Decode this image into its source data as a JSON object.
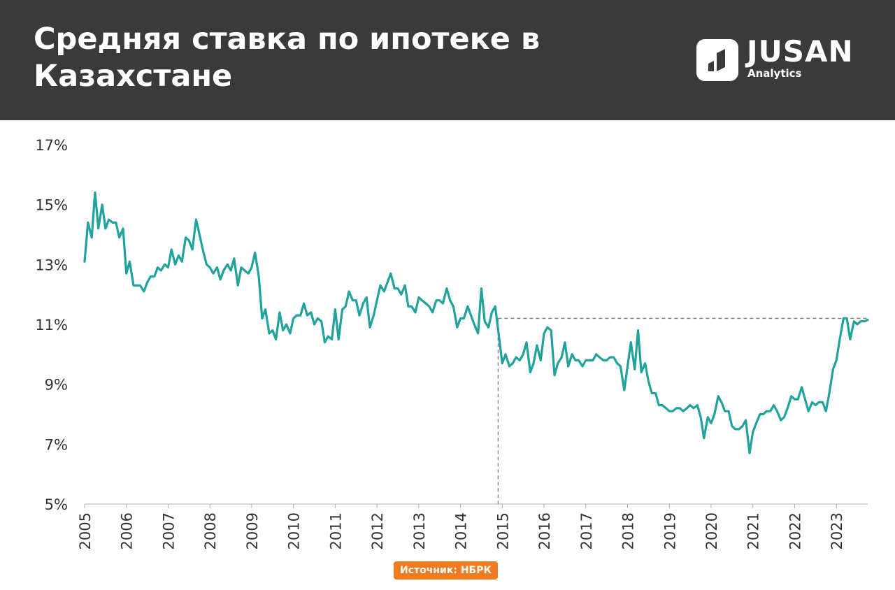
{
  "header": {
    "title": "Средняя ставка по ипотеке в Казахстане",
    "logo_name": "JUSAN",
    "logo_sub": "Analytics",
    "logo_icon": "jusan-logo-icon"
  },
  "source_label": "Источник: НБРК",
  "colors": {
    "header_bg": "#3a3a3a",
    "line": "#1fa39b",
    "source_badge": "#f07a1d",
    "reference": "#7a7a7a"
  },
  "chart_data": {
    "type": "line",
    "x_axis": "year",
    "xlim": [
      2005,
      2023.75
    ],
    "ylim": [
      5,
      17
    ],
    "yticks": [
      5,
      7,
      9,
      11,
      13,
      15,
      17
    ],
    "ytick_labels": [
      "5%",
      "7%",
      "9%",
      "11%",
      "13%",
      "15%",
      "17%"
    ],
    "xtick_labels": [
      "2005",
      "2006",
      "2007",
      "2008",
      "2009",
      "2010",
      "2011",
      "2012",
      "2013",
      "2014",
      "2015",
      "2016",
      "2017",
      "2018",
      "2019",
      "2020",
      "2021",
      "2022",
      "2023"
    ],
    "grid": false,
    "reference_lines": {
      "x": 2014.9,
      "y": 11.2
    },
    "series": [
      {
        "values": [
          [
            2005.0,
            13.1
          ],
          [
            2005.08,
            14.4
          ],
          [
            2005.17,
            13.9
          ],
          [
            2005.25,
            15.4
          ],
          [
            2005.33,
            14.2
          ],
          [
            2005.42,
            15.0
          ],
          [
            2005.5,
            14.2
          ],
          [
            2005.58,
            14.5
          ],
          [
            2005.67,
            14.4
          ],
          [
            2005.75,
            14.4
          ],
          [
            2005.83,
            13.9
          ],
          [
            2005.92,
            14.2
          ],
          [
            2006.0,
            12.7
          ],
          [
            2006.08,
            13.1
          ],
          [
            2006.17,
            12.3
          ],
          [
            2006.25,
            12.3
          ],
          [
            2006.33,
            12.3
          ],
          [
            2006.42,
            12.1
          ],
          [
            2006.5,
            12.4
          ],
          [
            2006.58,
            12.6
          ],
          [
            2006.67,
            12.6
          ],
          [
            2006.75,
            12.9
          ],
          [
            2006.83,
            12.8
          ],
          [
            2006.92,
            13.0
          ],
          [
            2007.0,
            12.9
          ],
          [
            2007.08,
            13.5
          ],
          [
            2007.17,
            13.0
          ],
          [
            2007.25,
            13.3
          ],
          [
            2007.33,
            13.1
          ],
          [
            2007.42,
            13.9
          ],
          [
            2007.5,
            13.8
          ],
          [
            2007.58,
            13.5
          ],
          [
            2007.67,
            14.5
          ],
          [
            2007.75,
            14.0
          ],
          [
            2007.83,
            13.5
          ],
          [
            2007.92,
            13.0
          ],
          [
            2008.0,
            12.9
          ],
          [
            2008.08,
            12.7
          ],
          [
            2008.17,
            12.9
          ],
          [
            2008.25,
            12.5
          ],
          [
            2008.33,
            12.8
          ],
          [
            2008.42,
            13.0
          ],
          [
            2008.5,
            12.8
          ],
          [
            2008.58,
            13.2
          ],
          [
            2008.67,
            12.3
          ],
          [
            2008.75,
            12.9
          ],
          [
            2008.83,
            12.8
          ],
          [
            2008.92,
            12.7
          ],
          [
            2009.0,
            12.9
          ],
          [
            2009.08,
            13.4
          ],
          [
            2009.17,
            12.6
          ],
          [
            2009.25,
            11.2
          ],
          [
            2009.33,
            11.5
          ],
          [
            2009.42,
            10.7
          ],
          [
            2009.5,
            10.8
          ],
          [
            2009.58,
            10.5
          ],
          [
            2009.67,
            11.4
          ],
          [
            2009.75,
            10.8
          ],
          [
            2009.83,
            11.0
          ],
          [
            2009.92,
            10.7
          ],
          [
            2010.0,
            11.2
          ],
          [
            2010.08,
            11.3
          ],
          [
            2010.17,
            11.3
          ],
          [
            2010.25,
            11.7
          ],
          [
            2010.33,
            11.3
          ],
          [
            2010.42,
            11.4
          ],
          [
            2010.5,
            11.0
          ],
          [
            2010.58,
            11.2
          ],
          [
            2010.67,
            11.1
          ],
          [
            2010.75,
            10.4
          ],
          [
            2010.83,
            10.6
          ],
          [
            2010.92,
            10.5
          ],
          [
            2011.0,
            11.5
          ],
          [
            2011.08,
            10.5
          ],
          [
            2011.17,
            11.5
          ],
          [
            2011.25,
            11.6
          ],
          [
            2011.33,
            12.1
          ],
          [
            2011.42,
            11.8
          ],
          [
            2011.5,
            11.8
          ],
          [
            2011.58,
            11.3
          ],
          [
            2011.67,
            11.7
          ],
          [
            2011.75,
            11.9
          ],
          [
            2011.83,
            10.9
          ],
          [
            2011.92,
            11.3
          ],
          [
            2012.0,
            11.8
          ],
          [
            2012.08,
            12.3
          ],
          [
            2012.17,
            12.1
          ],
          [
            2012.25,
            12.4
          ],
          [
            2012.33,
            12.7
          ],
          [
            2012.42,
            12.2
          ],
          [
            2012.5,
            12.2
          ],
          [
            2012.58,
            12.0
          ],
          [
            2012.67,
            12.3
          ],
          [
            2012.75,
            11.6
          ],
          [
            2012.83,
            11.6
          ],
          [
            2012.92,
            11.4
          ],
          [
            2013.0,
            11.9
          ],
          [
            2013.08,
            11.8
          ],
          [
            2013.17,
            11.7
          ],
          [
            2013.25,
            11.6
          ],
          [
            2013.33,
            11.4
          ],
          [
            2013.42,
            11.8
          ],
          [
            2013.5,
            11.8
          ],
          [
            2013.58,
            11.7
          ],
          [
            2013.67,
            12.2
          ],
          [
            2013.75,
            11.8
          ],
          [
            2013.83,
            11.6
          ],
          [
            2013.92,
            10.9
          ],
          [
            2014.0,
            11.2
          ],
          [
            2014.08,
            11.2
          ],
          [
            2014.17,
            11.6
          ],
          [
            2014.25,
            11.3
          ],
          [
            2014.33,
            11.0
          ],
          [
            2014.42,
            10.7
          ],
          [
            2014.5,
            12.2
          ],
          [
            2014.58,
            11.1
          ],
          [
            2014.67,
            10.9
          ],
          [
            2014.75,
            11.4
          ],
          [
            2014.83,
            11.6
          ],
          [
            2014.92,
            10.6
          ],
          [
            2015.0,
            9.7
          ],
          [
            2015.08,
            10.0
          ],
          [
            2015.17,
            9.6
          ],
          [
            2015.25,
            9.7
          ],
          [
            2015.33,
            9.9
          ],
          [
            2015.42,
            9.8
          ],
          [
            2015.5,
            10.0
          ],
          [
            2015.58,
            10.4
          ],
          [
            2015.67,
            9.4
          ],
          [
            2015.75,
            9.7
          ],
          [
            2015.83,
            10.3
          ],
          [
            2015.92,
            9.8
          ],
          [
            2016.0,
            10.7
          ],
          [
            2016.08,
            10.9
          ],
          [
            2016.17,
            10.8
          ],
          [
            2016.25,
            9.3
          ],
          [
            2016.33,
            9.7
          ],
          [
            2016.42,
            9.9
          ],
          [
            2016.5,
            10.4
          ],
          [
            2016.58,
            9.6
          ],
          [
            2016.67,
            10.0
          ],
          [
            2016.75,
            9.8
          ],
          [
            2016.83,
            9.8
          ],
          [
            2016.92,
            9.6
          ],
          [
            2017.0,
            9.8
          ],
          [
            2017.08,
            9.8
          ],
          [
            2017.17,
            9.8
          ],
          [
            2017.25,
            10.0
          ],
          [
            2017.33,
            9.9
          ],
          [
            2017.42,
            9.8
          ],
          [
            2017.5,
            9.8
          ],
          [
            2017.58,
            9.9
          ],
          [
            2017.67,
            9.9
          ],
          [
            2017.75,
            9.7
          ],
          [
            2017.83,
            9.6
          ],
          [
            2017.92,
            8.8
          ],
          [
            2018.0,
            9.6
          ],
          [
            2018.08,
            10.4
          ],
          [
            2018.17,
            9.5
          ],
          [
            2018.25,
            10.8
          ],
          [
            2018.33,
            9.4
          ],
          [
            2018.42,
            9.7
          ],
          [
            2018.5,
            9.1
          ],
          [
            2018.58,
            8.7
          ],
          [
            2018.67,
            8.7
          ],
          [
            2018.75,
            8.3
          ],
          [
            2018.83,
            8.3
          ],
          [
            2018.92,
            8.2
          ],
          [
            2019.0,
            8.1
          ],
          [
            2019.08,
            8.1
          ],
          [
            2019.17,
            8.2
          ],
          [
            2019.25,
            8.2
          ],
          [
            2019.33,
            8.1
          ],
          [
            2019.42,
            8.2
          ],
          [
            2019.5,
            8.3
          ],
          [
            2019.58,
            8.2
          ],
          [
            2019.67,
            8.3
          ],
          [
            2019.75,
            7.9
          ],
          [
            2019.83,
            7.2
          ],
          [
            2019.92,
            7.9
          ],
          [
            2020.0,
            7.7
          ],
          [
            2020.08,
            8.0
          ],
          [
            2020.17,
            8.6
          ],
          [
            2020.25,
            8.4
          ],
          [
            2020.33,
            8.1
          ],
          [
            2020.42,
            8.1
          ],
          [
            2020.5,
            7.6
          ],
          [
            2020.58,
            7.5
          ],
          [
            2020.67,
            7.5
          ],
          [
            2020.75,
            7.6
          ],
          [
            2020.83,
            7.8
          ],
          [
            2020.92,
            6.7
          ],
          [
            2021.0,
            7.4
          ],
          [
            2021.08,
            7.7
          ],
          [
            2021.17,
            8.0
          ],
          [
            2021.25,
            8.0
          ],
          [
            2021.33,
            8.1
          ],
          [
            2021.42,
            8.1
          ],
          [
            2021.5,
            8.3
          ],
          [
            2021.58,
            8.1
          ],
          [
            2021.67,
            7.8
          ],
          [
            2021.75,
            7.9
          ],
          [
            2021.83,
            8.2
          ],
          [
            2021.92,
            8.6
          ],
          [
            2022.0,
            8.5
          ],
          [
            2022.08,
            8.5
          ],
          [
            2022.17,
            8.9
          ],
          [
            2022.25,
            8.5
          ],
          [
            2022.33,
            8.1
          ],
          [
            2022.42,
            8.4
          ],
          [
            2022.5,
            8.3
          ],
          [
            2022.58,
            8.4
          ],
          [
            2022.67,
            8.4
          ],
          [
            2022.75,
            8.1
          ],
          [
            2022.83,
            8.7
          ],
          [
            2022.92,
            9.5
          ],
          [
            2023.0,
            9.8
          ],
          [
            2023.08,
            10.5
          ],
          [
            2023.17,
            11.2
          ],
          [
            2023.25,
            11.2
          ],
          [
            2023.33,
            10.5
          ],
          [
            2023.42,
            11.1
          ],
          [
            2023.5,
            11.0
          ],
          [
            2023.58,
            11.1
          ],
          [
            2023.67,
            11.1
          ],
          [
            2023.75,
            11.15
          ]
        ]
      }
    ]
  }
}
